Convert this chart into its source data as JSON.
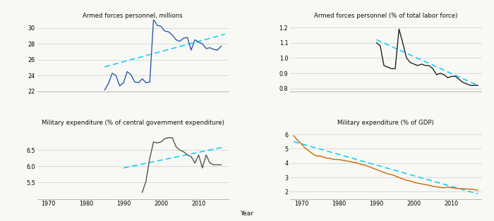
{
  "panels": [
    {
      "title": "Armed forces personnel, millions",
      "color": "#2a5caa",
      "years": [
        1985,
        1986,
        1987,
        1988,
        1989,
        1990,
        1991,
        1992,
        1993,
        1994,
        1995,
        1996,
        1997,
        1998,
        1999,
        2000,
        2001,
        2002,
        2003,
        2004,
        2005,
        2006,
        2007,
        2008,
        2009,
        2010,
        2011,
        2012,
        2013,
        2014,
        2015,
        2016
      ],
      "values": [
        22.2,
        23.0,
        24.3,
        24.0,
        22.7,
        23.1,
        24.5,
        24.1,
        23.2,
        23.1,
        23.6,
        23.1,
        23.2,
        31.1,
        30.3,
        30.2,
        29.6,
        29.5,
        29.1,
        28.5,
        28.3,
        28.7,
        28.8,
        27.2,
        28.5,
        28.2,
        28.0,
        27.4,
        27.5,
        27.3,
        27.2,
        27.7
      ],
      "trend_x": [
        1985,
        2017
      ],
      "trend_y": [
        25.1,
        29.2
      ],
      "xlim": [
        1968,
        2017
      ],
      "ylim": [
        22,
        31
      ],
      "yticks": [
        22,
        24,
        26,
        28,
        30
      ],
      "xticks": [
        1970,
        1980,
        1990,
        2000,
        2010
      ],
      "show_xticklabels": false
    },
    {
      "title": "Armed forces personnel (% of total labor force)",
      "color": "#222222",
      "years": [
        1990,
        1991,
        1992,
        1993,
        1994,
        1995,
        1996,
        1997,
        1998,
        1999,
        2000,
        2001,
        2002,
        2003,
        2004,
        2005,
        2006,
        2007,
        2008,
        2009,
        2010,
        2011,
        2012,
        2013,
        2014,
        2015,
        2016,
        2017
      ],
      "values": [
        1.1,
        1.08,
        0.95,
        0.94,
        0.93,
        0.93,
        1.19,
        1.1,
        1.0,
        0.97,
        0.96,
        0.95,
        0.96,
        0.95,
        0.95,
        0.93,
        0.89,
        0.9,
        0.89,
        0.87,
        0.88,
        0.88,
        0.86,
        0.84,
        0.83,
        0.82,
        0.82,
        0.82
      ],
      "trend_x": [
        1990,
        2017
      ],
      "trend_y": [
        1.12,
        0.82
      ],
      "xlim": [
        1968,
        2017
      ],
      "ylim": [
        0.78,
        1.25
      ],
      "yticks": [
        0.8,
        0.9,
        1.0,
        1.1,
        1.2
      ],
      "xticks": [
        1970,
        1980,
        1990,
        2000,
        2010
      ],
      "show_xticklabels": false
    },
    {
      "title": "Military expenditure (% of central government expenditure)",
      "color": "#555555",
      "years": [
        1995,
        1996,
        1997,
        1998,
        1999,
        2000,
        2001,
        2002,
        2003,
        2004,
        2005,
        2006,
        2007,
        2008,
        2009,
        2010,
        2011,
        2012,
        2013,
        2014,
        2015,
        2016
      ],
      "values": [
        5.2,
        5.55,
        6.25,
        6.75,
        6.72,
        6.75,
        6.85,
        6.88,
        6.88,
        6.6,
        6.5,
        6.45,
        6.35,
        6.3,
        6.1,
        6.35,
        5.95,
        6.35,
        6.1,
        6.05,
        6.05,
        6.05
      ],
      "trend_x": [
        1990,
        2017
      ],
      "trend_y": [
        5.95,
        6.6
      ],
      "xlim": [
        1968,
        2017
      ],
      "ylim": [
        5.0,
        7.2
      ],
      "yticks": [
        5.5,
        6.0,
        6.5
      ],
      "xticks": [
        1970,
        1980,
        1990,
        2000,
        2010
      ],
      "show_xticklabels": true
    },
    {
      "title": "Military expenditure (% of GDP)",
      "color": "#cc6600",
      "years": [
        1968,
        1969,
        1970,
        1971,
        1972,
        1973,
        1974,
        1975,
        1976,
        1977,
        1978,
        1979,
        1980,
        1981,
        1982,
        1983,
        1984,
        1985,
        1986,
        1987,
        1988,
        1989,
        1990,
        1991,
        1992,
        1993,
        1994,
        1995,
        1996,
        1997,
        1998,
        1999,
        2000,
        2001,
        2002,
        2003,
        2004,
        2005,
        2006,
        2007,
        2008,
        2009,
        2010,
        2011,
        2012,
        2013,
        2014,
        2015,
        2016,
        2017
      ],
      "values": [
        5.9,
        5.6,
        5.35,
        5.05,
        4.85,
        4.65,
        4.5,
        4.5,
        4.4,
        4.35,
        4.3,
        4.25,
        4.25,
        4.2,
        4.15,
        4.1,
        4.05,
        4.0,
        3.9,
        3.85,
        3.75,
        3.65,
        3.55,
        3.45,
        3.35,
        3.25,
        3.2,
        3.1,
        3.0,
        2.9,
        2.8,
        2.75,
        2.65,
        2.6,
        2.55,
        2.5,
        2.45,
        2.38,
        2.35,
        2.3,
        2.28,
        2.32,
        2.28,
        2.25,
        2.22,
        2.2,
        2.2,
        2.18,
        2.15,
        2.1
      ],
      "trend_x": [
        1968,
        2017
      ],
      "trend_y": [
        5.5,
        1.85
      ],
      "xlim": [
        1968,
        2017
      ],
      "ylim": [
        1.5,
        6.5
      ],
      "yticks": [
        2,
        3,
        4,
        5,
        6
      ],
      "xticks": [
        1970,
        1980,
        1990,
        2000,
        2010
      ],
      "show_xticklabels": true
    }
  ],
  "trend_color": "#00ccff",
  "background": "#f8f8f4",
  "xlabel": "Year"
}
